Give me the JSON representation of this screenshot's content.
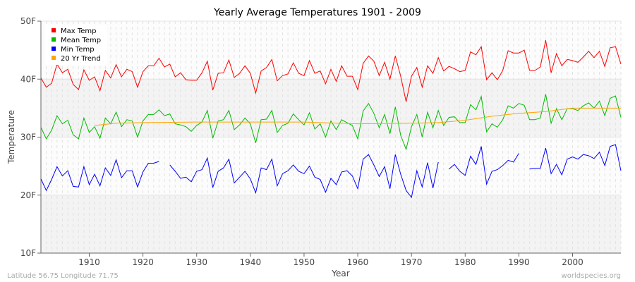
{
  "chart_data": {
    "type": "line",
    "title": "Yearly Average Temperatures 1901 - 2009",
    "xlabel": "Year",
    "ylabel": "Temperature",
    "xlim": [
      1901,
      2009
    ],
    "ylim": [
      10,
      50
    ],
    "yticks": [
      "10F",
      "20F",
      "30F",
      "40F",
      "50F"
    ],
    "ytick_values": [
      10,
      20,
      30,
      40,
      50
    ],
    "xticks": [
      1910,
      1920,
      1930,
      1940,
      1950,
      1960,
      1970,
      1980,
      1990,
      2000
    ],
    "grid": true,
    "legend_position": "top-left",
    "x_start": 1901,
    "series": [
      {
        "name": "Max Temp",
        "color": "#ff0000",
        "values": [
          40.2,
          38.6,
          39.3,
          42.6,
          41.1,
          41.7,
          39.1,
          38.2,
          41.6,
          39.8,
          40.4,
          38.0,
          41.5,
          40.2,
          42.5,
          40.4,
          41.7,
          41.3,
          38.6,
          41.3,
          42.3,
          42.3,
          43.6,
          42.1,
          42.6,
          40.4,
          41.1,
          39.9,
          39.8,
          39.8,
          41.1,
          43.1,
          38.1,
          41.0,
          41.1,
          43.3,
          40.3,
          41.0,
          42.3,
          41.0,
          37.6,
          41.4,
          42.0,
          43.4,
          39.7,
          40.6,
          40.9,
          42.8,
          41.0,
          40.6,
          43.2,
          41.0,
          41.4,
          39.2,
          41.7,
          39.6,
          42.3,
          40.5,
          40.5,
          38.2,
          42.7,
          44.0,
          43.1,
          40.6,
          42.9,
          40.0,
          44.0,
          40.5,
          36.1,
          40.5,
          42.0,
          38.6,
          42.3,
          41.0,
          43.7,
          41.4,
          42.2,
          41.8,
          41.3,
          41.5,
          44.7,
          44.2,
          45.6,
          39.9,
          41.1,
          39.9,
          41.5,
          44.9,
          44.5,
          44.5,
          45.0,
          41.5,
          41.5,
          42.1,
          46.7,
          41.1,
          44.4,
          42.3,
          43.4,
          43.2,
          42.9,
          43.8,
          44.8,
          43.7,
          44.8,
          42.2,
          45.4,
          45.6,
          42.6
        ]
      },
      {
        "name": "Mean Temp",
        "color": "#00bb00",
        "values": [
          31.7,
          29.7,
          31.2,
          33.7,
          32.3,
          32.9,
          30.4,
          29.7,
          33.3,
          30.8,
          31.8,
          29.8,
          33.3,
          32.3,
          34.3,
          31.8,
          33.0,
          32.8,
          30.0,
          32.8,
          33.9,
          33.9,
          34.7,
          33.7,
          34.0,
          32.3,
          32.1,
          31.8,
          31.0,
          32.0,
          32.6,
          34.6,
          29.8,
          32.8,
          33.0,
          34.6,
          31.3,
          32.1,
          33.3,
          32.3,
          29.0,
          33.0,
          33.1,
          34.6,
          30.8,
          32.0,
          32.4,
          34.0,
          33.0,
          32.1,
          34.2,
          31.4,
          32.3,
          30.0,
          32.8,
          31.3,
          33.0,
          32.5,
          32.0,
          29.7,
          34.5,
          35.8,
          34.1,
          31.6,
          33.9,
          30.6,
          35.2,
          30.3,
          27.9,
          31.8,
          33.9,
          30.0,
          34.3,
          31.6,
          34.6,
          32.0,
          33.4,
          33.5,
          32.5,
          32.5,
          35.6,
          34.7,
          37.0,
          30.9,
          32.3,
          31.7,
          33.0,
          35.4,
          35.0,
          35.8,
          35.5,
          33.0,
          33.0,
          33.3,
          37.4,
          32.4,
          34.9,
          33.0,
          34.9,
          34.9,
          34.6,
          35.4,
          35.9,
          35.0,
          36.2,
          33.7,
          36.7,
          37.1,
          33.4
        ]
      },
      {
        "name": "Min Temp",
        "color": "#0000ff",
        "values": [
          22.8,
          20.8,
          22.7,
          24.9,
          23.3,
          24.2,
          21.5,
          21.4,
          24.9,
          21.8,
          23.6,
          21.6,
          24.7,
          23.4,
          26.1,
          23.0,
          24.2,
          24.2,
          21.4,
          24.0,
          25.5,
          25.5,
          25.8,
          null,
          25.2,
          24.1,
          22.9,
          23.1,
          22.3,
          24.1,
          24.4,
          26.4,
          21.3,
          24.1,
          24.7,
          26.2,
          22.1,
          23.1,
          24.1,
          22.8,
          20.4,
          24.7,
          24.4,
          26.2,
          21.6,
          23.7,
          24.2,
          25.2,
          24.1,
          23.7,
          25.0,
          23.1,
          22.7,
          20.5,
          22.9,
          21.8,
          24.0,
          24.2,
          23.3,
          21.1,
          26.2,
          27.0,
          25.2,
          23.2,
          24.9,
          21.1,
          27.0,
          23.6,
          20.8,
          19.6,
          24.2,
          21.4,
          25.6,
          21.2,
          25.7,
          null,
          24.5,
          25.3,
          24.1,
          23.4,
          26.7,
          25.3,
          28.4,
          21.9,
          24.1,
          24.4,
          25.1,
          26.0,
          25.7,
          27.2,
          null,
          24.5,
          24.6,
          24.6,
          28.1,
          23.7,
          25.3,
          23.5,
          26.2,
          26.6,
          26.2,
          27.0,
          26.8,
          26.3,
          27.4,
          25.1,
          28.4,
          28.7,
          24.2
        ]
      },
      {
        "name": "20 Yr Trend",
        "color": "#ffa500",
        "x": [
          1911,
          1915,
          1920,
          1930,
          1940,
          1950,
          1960,
          1970,
          1975,
          1980,
          1985,
          1990,
          1995,
          2000,
          2009
        ],
        "values": [
          32.0,
          32.4,
          32.5,
          32.6,
          32.6,
          32.6,
          32.3,
          32.4,
          32.5,
          32.9,
          33.6,
          34.1,
          34.4,
          35.0,
          35.0
        ]
      }
    ]
  },
  "footer": {
    "location": "Latitude 56.75 Longitude 71.75",
    "credit": "worldspecies.org"
  }
}
